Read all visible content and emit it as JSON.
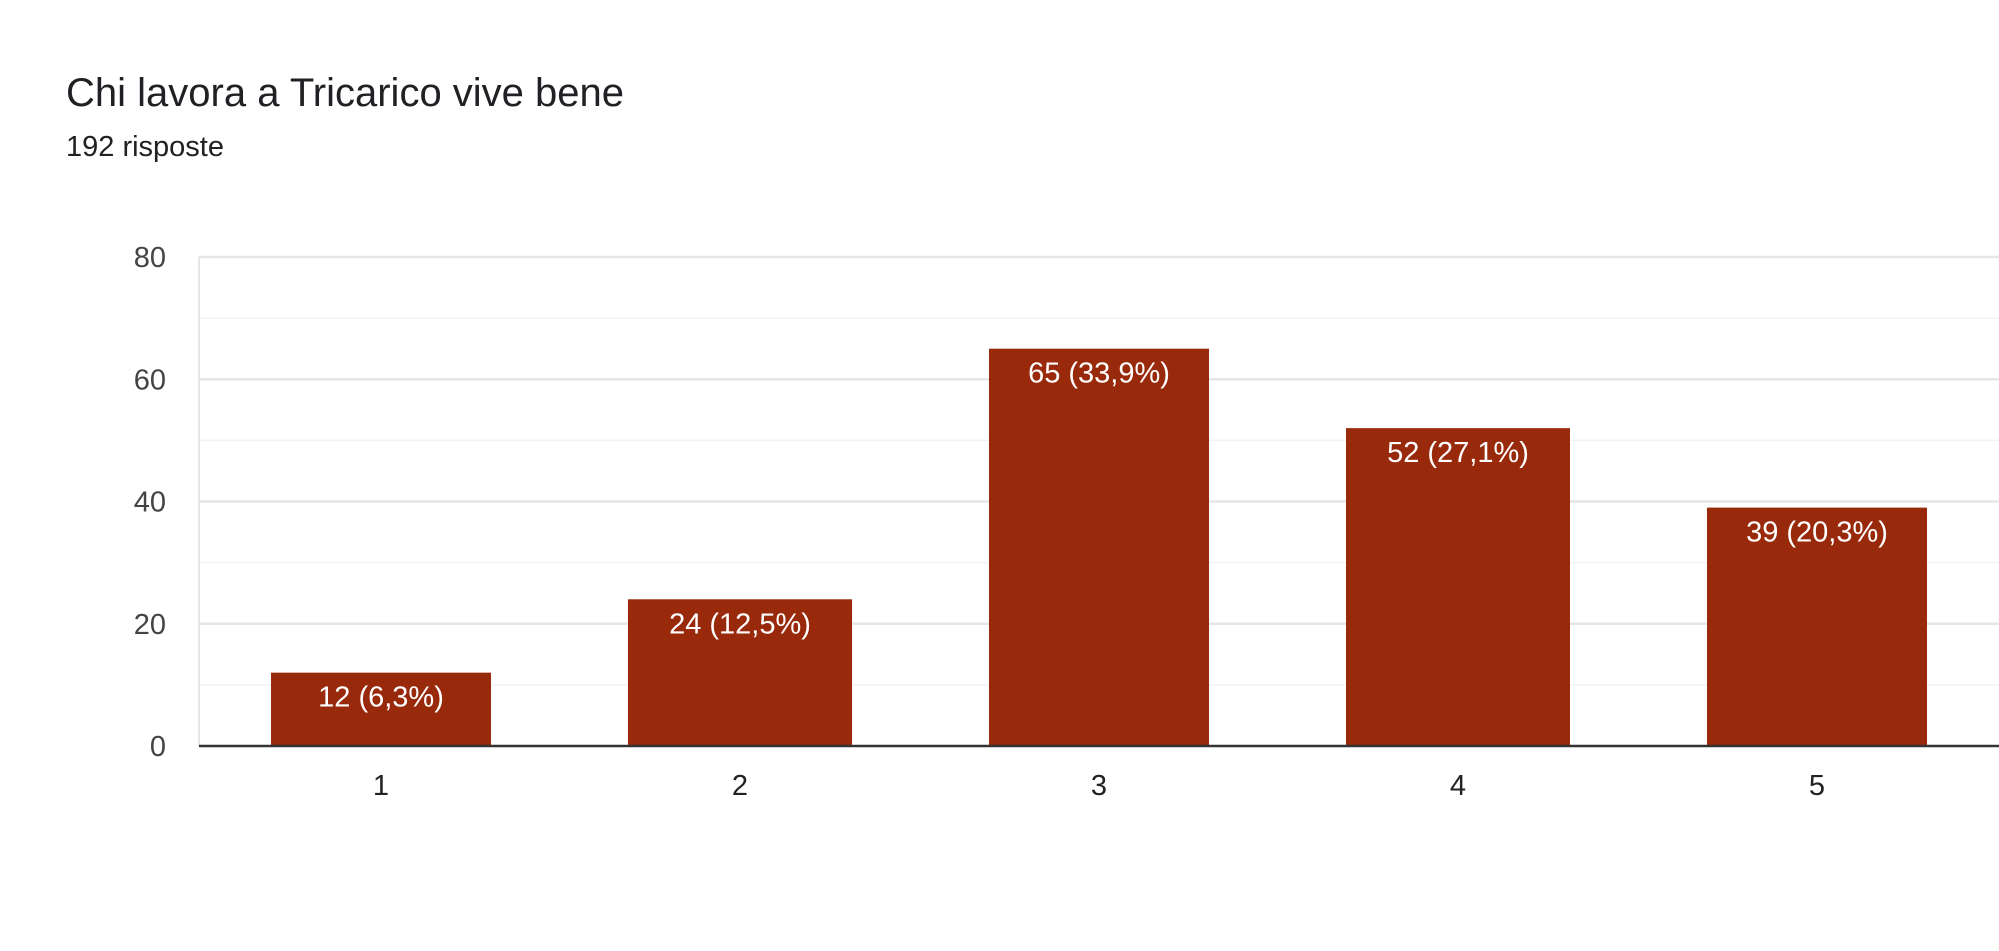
{
  "header": {
    "title": "Chi lavora a Tricarico vive bene",
    "responses": "192 risposte"
  },
  "chart_data": {
    "type": "bar",
    "title": "Chi lavora a Tricarico vive bene",
    "subtitle": "192 risposte",
    "xlabel": "",
    "ylabel": "",
    "categories": [
      "1",
      "2",
      "3",
      "4",
      "5"
    ],
    "values": [
      12,
      24,
      65,
      52,
      39
    ],
    "data_labels": [
      "12 (6,3%)",
      "24 (12,5%)",
      "65 (33,9%)",
      "52 (27,1%)",
      "39 (20,3%)"
    ],
    "ylim": [
      0,
      80
    ],
    "yticks": [
      0,
      20,
      40,
      60,
      80
    ],
    "grid": true,
    "legend": "none",
    "colors": {
      "bar": "#99290b",
      "grid_major": "#e6e6e6",
      "grid_minor": "#f2f2f2",
      "axis": "#333333"
    }
  }
}
